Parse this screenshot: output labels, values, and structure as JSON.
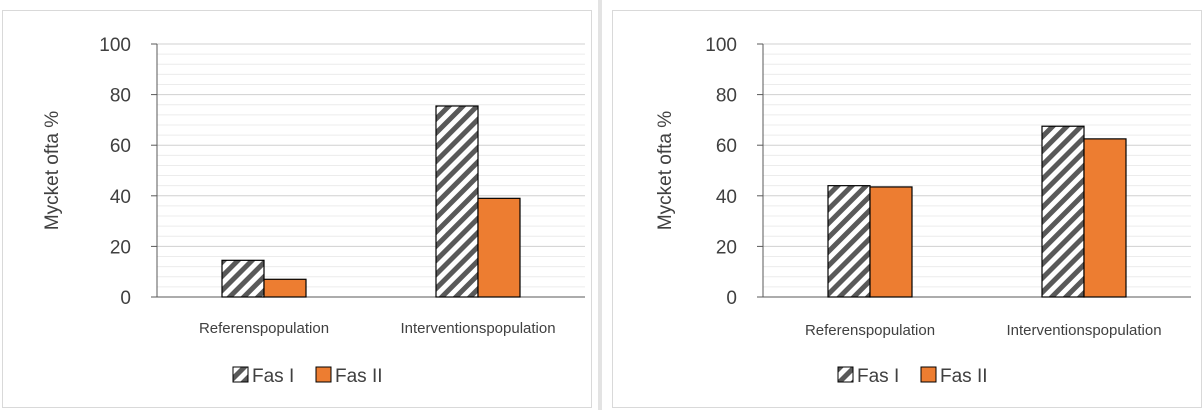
{
  "chart_data": [
    {
      "type": "bar",
      "categories": [
        "Referenspopulation",
        "Interventionspopulation"
      ],
      "series": [
        {
          "name": "Fas I",
          "values": [
            14.5,
            75.5
          ],
          "pattern": "diagonal-hatch",
          "color": "#595959"
        },
        {
          "name": "Fas II",
          "values": [
            7,
            39
          ],
          "color": "#ed7d31"
        }
      ],
      "title": "",
      "xlabel": "",
      "ylabel": "Mycket ofta %",
      "ylim": [
        0,
        100
      ],
      "yticks": [
        0,
        20,
        40,
        60,
        80,
        100
      ],
      "grid": true,
      "legend": "bottom"
    },
    {
      "type": "bar",
      "categories": [
        "Referenspopulation",
        "Interventionspopulation"
      ],
      "series": [
        {
          "name": "Fas I",
          "values": [
            44,
            67.5
          ],
          "pattern": "diagonal-hatch",
          "color": "#595959"
        },
        {
          "name": "Fas II",
          "values": [
            43.5,
            62.5
          ],
          "color": "#ed7d31"
        }
      ],
      "title": "",
      "xlabel": "",
      "ylabel": "Mycket ofta %",
      "ylim": [
        0,
        100
      ],
      "yticks": [
        0,
        20,
        40,
        60,
        80,
        100
      ],
      "grid": true,
      "legend": "bottom"
    }
  ]
}
